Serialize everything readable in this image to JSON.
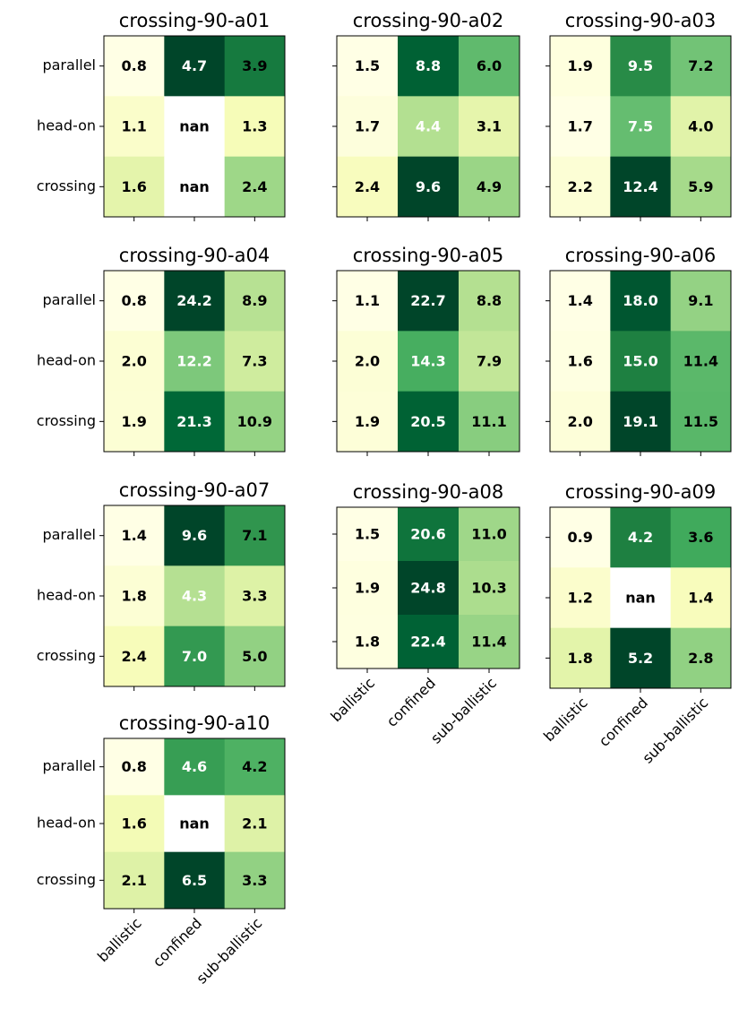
{
  "chart_data": [
    {
      "type": "heatmap",
      "title": "crossing-90-a01",
      "colormap": "YlGn",
      "y_categories": [
        "parallel",
        "head-on",
        "crossing"
      ],
      "values": [
        [
          0.8,
          4.7,
          3.9
        ],
        [
          1.1,
          null,
          1.3
        ],
        [
          1.6,
          null,
          2.4
        ]
      ],
      "value_labels": [
        [
          "0.8",
          "4.7",
          "3.9"
        ],
        [
          "1.1",
          "nan",
          "1.3"
        ],
        [
          "1.6",
          "nan",
          "2.4"
        ]
      ],
      "label_colors": [
        "#000000",
        "#ffffff",
        "#000000"
      ]
    },
    {
      "type": "heatmap",
      "title": "crossing-90-a02",
      "colormap": "YlGn",
      "values": [
        [
          1.5,
          8.8,
          6.0
        ],
        [
          1.7,
          4.4,
          3.1
        ],
        [
          2.4,
          9.6,
          4.9
        ]
      ],
      "value_labels": [
        [
          "1.5",
          "8.8",
          "6.0"
        ],
        [
          "1.7",
          "4.4",
          "3.1"
        ],
        [
          "2.4",
          "9.6",
          "4.9"
        ]
      ],
      "label_colors": [
        "#000000",
        "#ffffff",
        "#000000"
      ]
    },
    {
      "type": "heatmap",
      "title": "crossing-90-a03",
      "colormap": "YlGn",
      "values": [
        [
          1.9,
          9.5,
          7.2
        ],
        [
          1.7,
          7.5,
          4.0
        ],
        [
          2.2,
          12.4,
          5.9
        ]
      ],
      "value_labels": [
        [
          "1.9",
          "9.5",
          "7.2"
        ],
        [
          "1.7",
          "7.5",
          "4.0"
        ],
        [
          "2.2",
          "12.4",
          "5.9"
        ]
      ],
      "label_colors": [
        "#000000",
        "#ffffff",
        "#000000"
      ]
    },
    {
      "type": "heatmap",
      "title": "crossing-90-a04",
      "colormap": "YlGn",
      "y_categories": [
        "parallel",
        "head-on",
        "crossing"
      ],
      "values": [
        [
          0.8,
          24.2,
          8.9
        ],
        [
          2.0,
          12.2,
          7.3
        ],
        [
          1.9,
          21.3,
          10.9
        ]
      ],
      "value_labels": [
        [
          "0.8",
          "24.2",
          "8.9"
        ],
        [
          "2.0",
          "12.2",
          "7.3"
        ],
        [
          "1.9",
          "21.3",
          "10.9"
        ]
      ],
      "label_colors": [
        "#000000",
        "#ffffff",
        "#000000"
      ]
    },
    {
      "type": "heatmap",
      "title": "crossing-90-a05",
      "colormap": "YlGn",
      "values": [
        [
          1.1,
          22.7,
          8.8
        ],
        [
          2.0,
          14.3,
          7.9
        ],
        [
          1.9,
          20.5,
          11.1
        ]
      ],
      "value_labels": [
        [
          "1.1",
          "22.7",
          "8.8"
        ],
        [
          "2.0",
          "14.3",
          "7.9"
        ],
        [
          "1.9",
          "20.5",
          "11.1"
        ]
      ],
      "label_colors": [
        "#000000",
        "#ffffff",
        "#000000"
      ]
    },
    {
      "type": "heatmap",
      "title": "crossing-90-a06",
      "colormap": "YlGn",
      "values": [
        [
          1.4,
          18.0,
          9.1
        ],
        [
          1.6,
          15.0,
          11.4
        ],
        [
          2.0,
          19.1,
          11.5
        ]
      ],
      "value_labels": [
        [
          "1.4",
          "18.0",
          "9.1"
        ],
        [
          "1.6",
          "15.0",
          "11.4"
        ],
        [
          "2.0",
          "19.1",
          "11.5"
        ]
      ],
      "label_colors": [
        "#000000",
        "#ffffff",
        "#000000"
      ]
    },
    {
      "type": "heatmap",
      "title": "crossing-90-a07",
      "colormap": "YlGn",
      "y_categories": [
        "parallel",
        "head-on",
        "crossing"
      ],
      "values": [
        [
          1.4,
          9.6,
          7.1
        ],
        [
          1.8,
          4.3,
          3.3
        ],
        [
          2.4,
          7.0,
          5.0
        ]
      ],
      "value_labels": [
        [
          "1.4",
          "9.6",
          "7.1"
        ],
        [
          "1.8",
          "4.3",
          "3.3"
        ],
        [
          "2.4",
          "7.0",
          "5.0"
        ]
      ],
      "label_colors": [
        "#000000",
        "#ffffff",
        "#000000"
      ]
    },
    {
      "type": "heatmap",
      "title": "crossing-90-a08",
      "colormap": "YlGn",
      "x_categories": [
        "ballistic",
        "confined",
        "sub-ballistic"
      ],
      "values": [
        [
          1.5,
          20.6,
          11.0
        ],
        [
          1.9,
          24.8,
          10.3
        ],
        [
          1.8,
          22.4,
          11.4
        ]
      ],
      "value_labels": [
        [
          "1.5",
          "20.6",
          "11.0"
        ],
        [
          "1.9",
          "24.8",
          "10.3"
        ],
        [
          "1.8",
          "22.4",
          "11.4"
        ]
      ],
      "label_colors": [
        "#000000",
        "#ffffff",
        "#000000"
      ]
    },
    {
      "type": "heatmap",
      "title": "crossing-90-a09",
      "colormap": "YlGn",
      "x_categories": [
        "ballistic",
        "confined",
        "sub-ballistic"
      ],
      "values": [
        [
          0.9,
          4.2,
          3.6
        ],
        [
          1.2,
          null,
          1.4
        ],
        [
          1.8,
          5.2,
          2.8
        ]
      ],
      "value_labels": [
        [
          "0.9",
          "4.2",
          "3.6"
        ],
        [
          "1.2",
          "nan",
          "1.4"
        ],
        [
          "1.8",
          "5.2",
          "2.8"
        ]
      ],
      "label_colors": [
        "#000000",
        "#ffffff",
        "#000000"
      ]
    },
    {
      "type": "heatmap",
      "title": "crossing-90-a10",
      "colormap": "YlGn",
      "y_categories": [
        "parallel",
        "head-on",
        "crossing"
      ],
      "x_categories": [
        "ballistic",
        "confined",
        "sub-ballistic"
      ],
      "values": [
        [
          0.8,
          4.6,
          4.2
        ],
        [
          1.6,
          null,
          2.1
        ],
        [
          2.1,
          6.5,
          3.3
        ]
      ],
      "value_labels": [
        [
          "0.8",
          "4.6",
          "4.2"
        ],
        [
          "1.6",
          "nan",
          "2.1"
        ],
        [
          "2.1",
          "6.5",
          "3.3"
        ]
      ],
      "label_colors": [
        "#000000",
        "#ffffff",
        "#000000"
      ]
    }
  ]
}
